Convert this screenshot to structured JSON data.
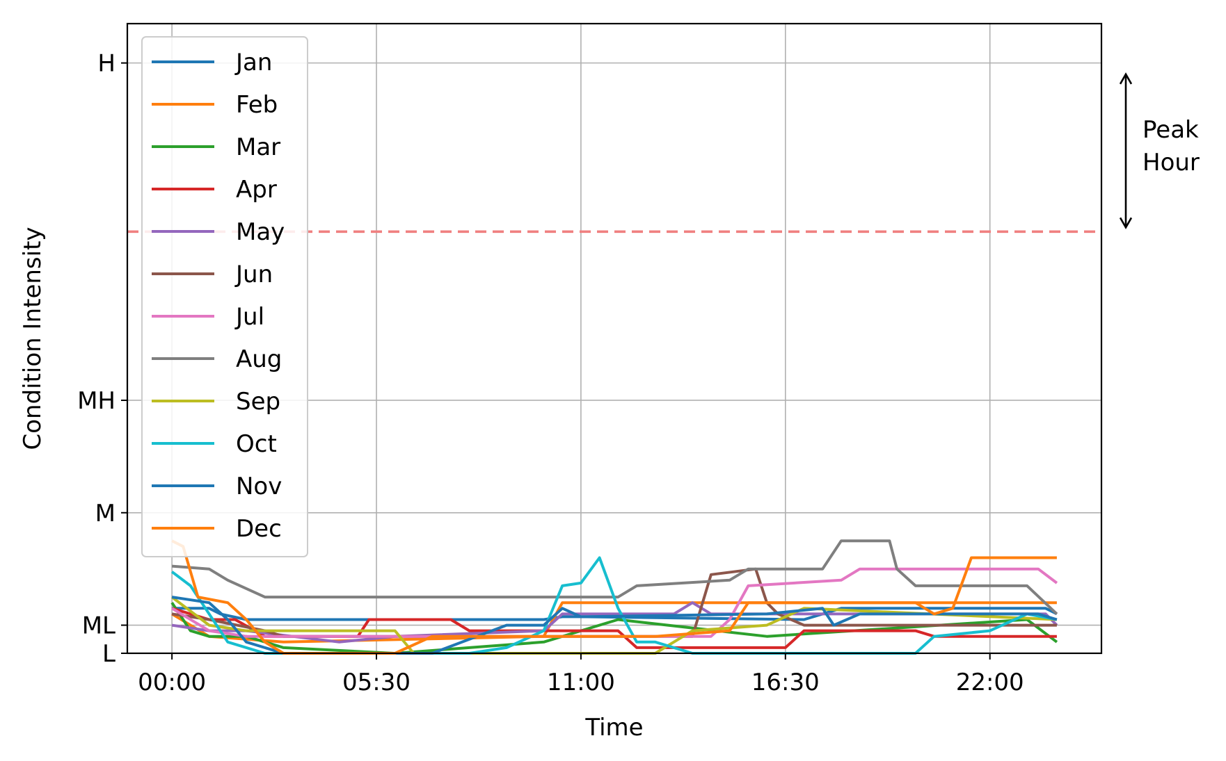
{
  "chart_data": {
    "type": "line",
    "xlabel": "Time",
    "ylabel": "Condition Intensity",
    "x_ticks": [
      "00:00",
      "05:30",
      "11:00",
      "16:30",
      "22:00"
    ],
    "x_tick_hours": [
      0,
      5.5,
      11,
      16.5,
      22
    ],
    "xlim": [
      -1.2,
      25.0
    ],
    "y_ticks": [
      {
        "label": "L",
        "value": 0.0
      },
      {
        "label": "ML",
        "value": 0.05
      },
      {
        "label": "M",
        "value": 0.25
      },
      {
        "label": "MH",
        "value": 0.45
      },
      {
        "label": "H",
        "value": 1.05
      }
    ],
    "ylim": [
      0,
      1.12
    ],
    "grid": true,
    "legend_position": "upper left",
    "threshold": {
      "value": 0.75,
      "style": "dashed",
      "color": "#f08080"
    },
    "annotation": {
      "text_line1": "Peak",
      "text_line2": "Hour",
      "arrow_range": [
        0.75,
        1.03
      ]
    },
    "series": [
      {
        "name": "Jan",
        "color": "#1f77b4",
        "points": [
          [
            0,
            0.08
          ],
          [
            1,
            0.08
          ],
          [
            1.3,
            0.07
          ],
          [
            2,
            0.06
          ],
          [
            10,
            0.06
          ],
          [
            10.5,
            0.065
          ],
          [
            11,
            0.065
          ],
          [
            17,
            0.06
          ],
          [
            18,
            0.08
          ],
          [
            23.5,
            0.08
          ],
          [
            23.8,
            0.07
          ]
        ]
      },
      {
        "name": "Feb",
        "color": "#ff7f0e",
        "points": [
          [
            0,
            0.07
          ],
          [
            0.5,
            0.05
          ],
          [
            1,
            0.03
          ],
          [
            3,
            0.02
          ],
          [
            10,
            0.03
          ],
          [
            10.5,
            0.09
          ],
          [
            23.8,
            0.09
          ]
        ]
      },
      {
        "name": "Mar",
        "color": "#2ca02c",
        "points": [
          [
            0,
            0.09
          ],
          [
            0.5,
            0.04
          ],
          [
            1,
            0.03
          ],
          [
            2,
            0.03
          ],
          [
            3,
            0.01
          ],
          [
            6,
            0.0
          ],
          [
            8,
            0.01
          ],
          [
            10,
            0.02
          ],
          [
            12,
            0.06
          ],
          [
            16,
            0.03
          ],
          [
            23,
            0.06
          ],
          [
            23.8,
            0.02
          ]
        ]
      },
      {
        "name": "Apr",
        "color": "#d62728",
        "points": [
          [
            0,
            0.08
          ],
          [
            1,
            0.06
          ],
          [
            1.7,
            0.06
          ],
          [
            2.5,
            0.03
          ],
          [
            5,
            0.03
          ],
          [
            5.3,
            0.06
          ],
          [
            7.5,
            0.06
          ],
          [
            8,
            0.04
          ],
          [
            12,
            0.04
          ],
          [
            12.5,
            0.01
          ],
          [
            16.5,
            0.01
          ],
          [
            17,
            0.04
          ],
          [
            20,
            0.04
          ],
          [
            20.5,
            0.03
          ],
          [
            23.8,
            0.03
          ]
        ]
      },
      {
        "name": "May",
        "color": "#9467bd",
        "points": [
          [
            0,
            0.05
          ],
          [
            1,
            0.04
          ],
          [
            2,
            0.04
          ],
          [
            4.5,
            0.02
          ],
          [
            6,
            0.03
          ],
          [
            10,
            0.04
          ],
          [
            10.5,
            0.07
          ],
          [
            13.5,
            0.07
          ],
          [
            14,
            0.09
          ],
          [
            14.5,
            0.07
          ],
          [
            23.5,
            0.07
          ],
          [
            23.8,
            0.05
          ]
        ]
      },
      {
        "name": "Jun",
        "color": "#8c564b",
        "points": [
          [
            0,
            0.07
          ],
          [
            1,
            0.06
          ],
          [
            2.5,
            0.04
          ],
          [
            3,
            0.03
          ],
          [
            12,
            0.03
          ],
          [
            14,
            0.03
          ],
          [
            14.5,
            0.14
          ],
          [
            15.7,
            0.15
          ],
          [
            16,
            0.09
          ],
          [
            16.3,
            0.07
          ],
          [
            17,
            0.05
          ],
          [
            23.8,
            0.05
          ]
        ]
      },
      {
        "name": "Jul",
        "color": "#e377c2",
        "points": [
          [
            0,
            0.08
          ],
          [
            1,
            0.04
          ],
          [
            2,
            0.03
          ],
          [
            14.5,
            0.03
          ],
          [
            15,
            0.06
          ],
          [
            15.5,
            0.12
          ],
          [
            18,
            0.13
          ],
          [
            18.5,
            0.15
          ],
          [
            23.3,
            0.15
          ],
          [
            23.8,
            0.125
          ]
        ]
      },
      {
        "name": "Aug",
        "color": "#7f7f7f",
        "points": [
          [
            0,
            0.155
          ],
          [
            1,
            0.15
          ],
          [
            1.5,
            0.13
          ],
          [
            2.5,
            0.1
          ],
          [
            3,
            0.1
          ],
          [
            12,
            0.1
          ],
          [
            12.5,
            0.12
          ],
          [
            15,
            0.13
          ],
          [
            15.5,
            0.15
          ],
          [
            17.5,
            0.15
          ],
          [
            18,
            0.2
          ],
          [
            19.3,
            0.2
          ],
          [
            19.5,
            0.15
          ],
          [
            20,
            0.12
          ],
          [
            23,
            0.12
          ],
          [
            23.8,
            0.07
          ]
        ]
      },
      {
        "name": "Sep",
        "color": "#bcbd22",
        "points": [
          [
            0,
            0.1
          ],
          [
            1,
            0.05
          ],
          [
            2,
            0.04
          ],
          [
            6,
            0.04
          ],
          [
            6.5,
            0.0
          ],
          [
            13,
            0.0
          ],
          [
            14,
            0.04
          ],
          [
            16,
            0.05
          ],
          [
            17,
            0.08
          ],
          [
            23.8,
            0.06
          ]
        ]
      },
      {
        "name": "Oct",
        "color": "#17becf",
        "points": [
          [
            0,
            0.145
          ],
          [
            0.5,
            0.12
          ],
          [
            1.5,
            0.02
          ],
          [
            2.5,
            0.0
          ],
          [
            8,
            0.0
          ],
          [
            9,
            0.01
          ],
          [
            10,
            0.04
          ],
          [
            10.5,
            0.12
          ],
          [
            11,
            0.125
          ],
          [
            11.5,
            0.17
          ],
          [
            12,
            0.08
          ],
          [
            12.5,
            0.02
          ],
          [
            13,
            0.02
          ],
          [
            14,
            0.0
          ],
          [
            20,
            0.0
          ],
          [
            20.5,
            0.03
          ],
          [
            22,
            0.04
          ],
          [
            23,
            0.07
          ],
          [
            23.8,
            0.06
          ]
        ]
      },
      {
        "name": "Nov",
        "color": "#1f77b4",
        "points": [
          [
            0,
            0.1
          ],
          [
            1,
            0.09
          ],
          [
            1.5,
            0.06
          ],
          [
            2,
            0.02
          ],
          [
            3,
            0.0
          ],
          [
            7,
            0.0
          ],
          [
            9,
            0.05
          ],
          [
            10,
            0.05
          ],
          [
            10.5,
            0.08
          ],
          [
            11,
            0.065
          ],
          [
            16,
            0.07
          ],
          [
            17.5,
            0.08
          ],
          [
            17.8,
            0.05
          ],
          [
            18.5,
            0.07
          ],
          [
            23.3,
            0.07
          ],
          [
            23.8,
            0.06
          ]
        ]
      },
      {
        "name": "Dec",
        "color": "#ff7f0e",
        "points": [
          [
            0,
            0.2
          ],
          [
            0.3,
            0.19
          ],
          [
            0.7,
            0.1
          ],
          [
            1.5,
            0.09
          ],
          [
            2,
            0.06
          ],
          [
            2.5,
            0.02
          ],
          [
            3,
            0.0
          ],
          [
            6,
            0.0
          ],
          [
            7,
            0.03
          ],
          [
            13,
            0.03
          ],
          [
            15,
            0.04
          ],
          [
            15.5,
            0.09
          ],
          [
            20,
            0.09
          ],
          [
            20.5,
            0.07
          ],
          [
            21,
            0.08
          ],
          [
            21.5,
            0.17
          ],
          [
            23.8,
            0.17
          ]
        ]
      }
    ]
  }
}
